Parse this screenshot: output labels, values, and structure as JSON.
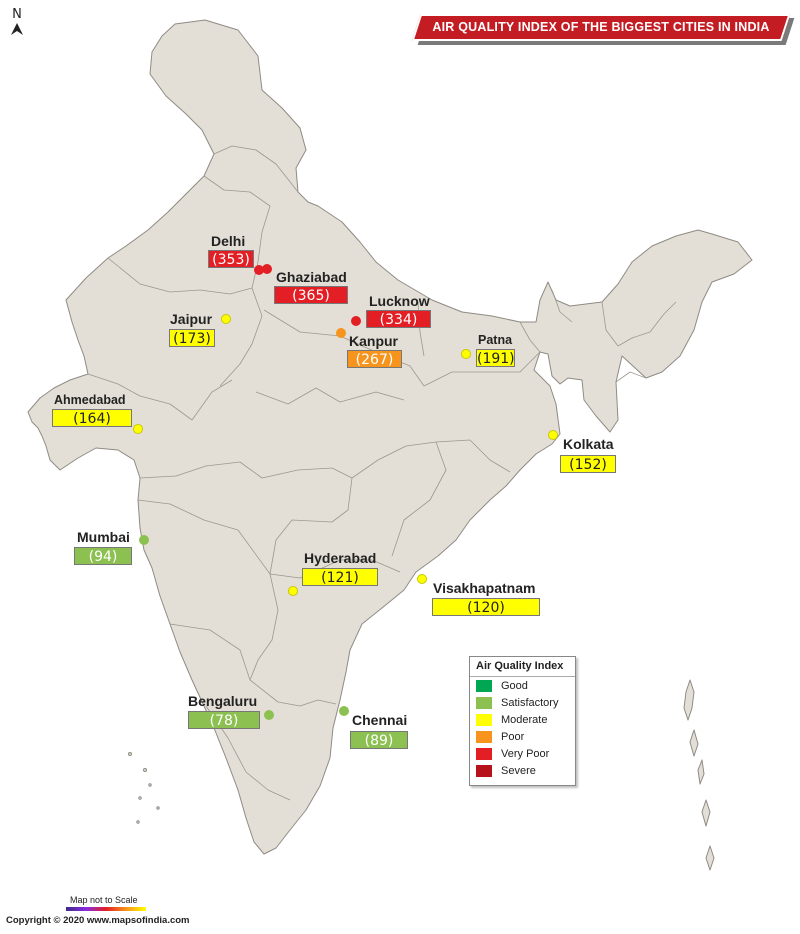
{
  "header": {
    "title": "AIR QUALITY INDEX OF THE BIGGEST CITIES IN INDIA",
    "north_label": "N",
    "north_icon": "north-arrow-icon"
  },
  "colors": {
    "land": "#e3dfd6",
    "border": "#8c8c8c",
    "title_bg": "#c41c23",
    "good": "#00a651",
    "satisfactory": "#8cc152",
    "moderate": "#ffff00",
    "poor": "#f7941d",
    "very_poor": "#e31e24",
    "severe": "#b5121b"
  },
  "cities": [
    {
      "name": "Delhi",
      "aqi": "(353)",
      "category": "Very Poor"
    },
    {
      "name": "Ghaziabad",
      "aqi": "(365)",
      "category": "Very Poor"
    },
    {
      "name": "Lucknow",
      "aqi": "(334)",
      "category": "Very Poor"
    },
    {
      "name": "Kanpur",
      "aqi": "(267)",
      "category": "Poor"
    },
    {
      "name": "Jaipur",
      "aqi": "(173)",
      "category": "Moderate"
    },
    {
      "name": "Patna",
      "aqi": "(191)",
      "category": "Moderate"
    },
    {
      "name": "Ahmedabad",
      "aqi": "(164)",
      "category": "Moderate"
    },
    {
      "name": "Kolkata",
      "aqi": "(152)",
      "category": "Moderate"
    },
    {
      "name": "Mumbai",
      "aqi": "(94)",
      "category": "Satisfactory"
    },
    {
      "name": "Hyderabad",
      "aqi": "(121)",
      "category": "Moderate"
    },
    {
      "name": "Visakhapatnam",
      "aqi": "(120)",
      "category": "Moderate"
    },
    {
      "name": "Bengaluru",
      "aqi": "(78)",
      "category": "Satisfactory"
    },
    {
      "name": "Chennai",
      "aqi": "(89)",
      "category": "Satisfactory"
    }
  ],
  "legend": {
    "title": "Air Quality Index",
    "items": [
      {
        "label": "Good",
        "color": "#00a651"
      },
      {
        "label": "Satisfactory",
        "color": "#8cc152"
      },
      {
        "label": "Moderate",
        "color": "#ffff00"
      },
      {
        "label": "Poor",
        "color": "#f7941d"
      },
      {
        "label": "Very Poor",
        "color": "#e31e24"
      },
      {
        "label": "Severe",
        "color": "#b5121b"
      }
    ]
  },
  "footer": {
    "scale_note": "Map not to Scale",
    "copyright": "Copyright © 2020 www.mapsofindia.com"
  }
}
